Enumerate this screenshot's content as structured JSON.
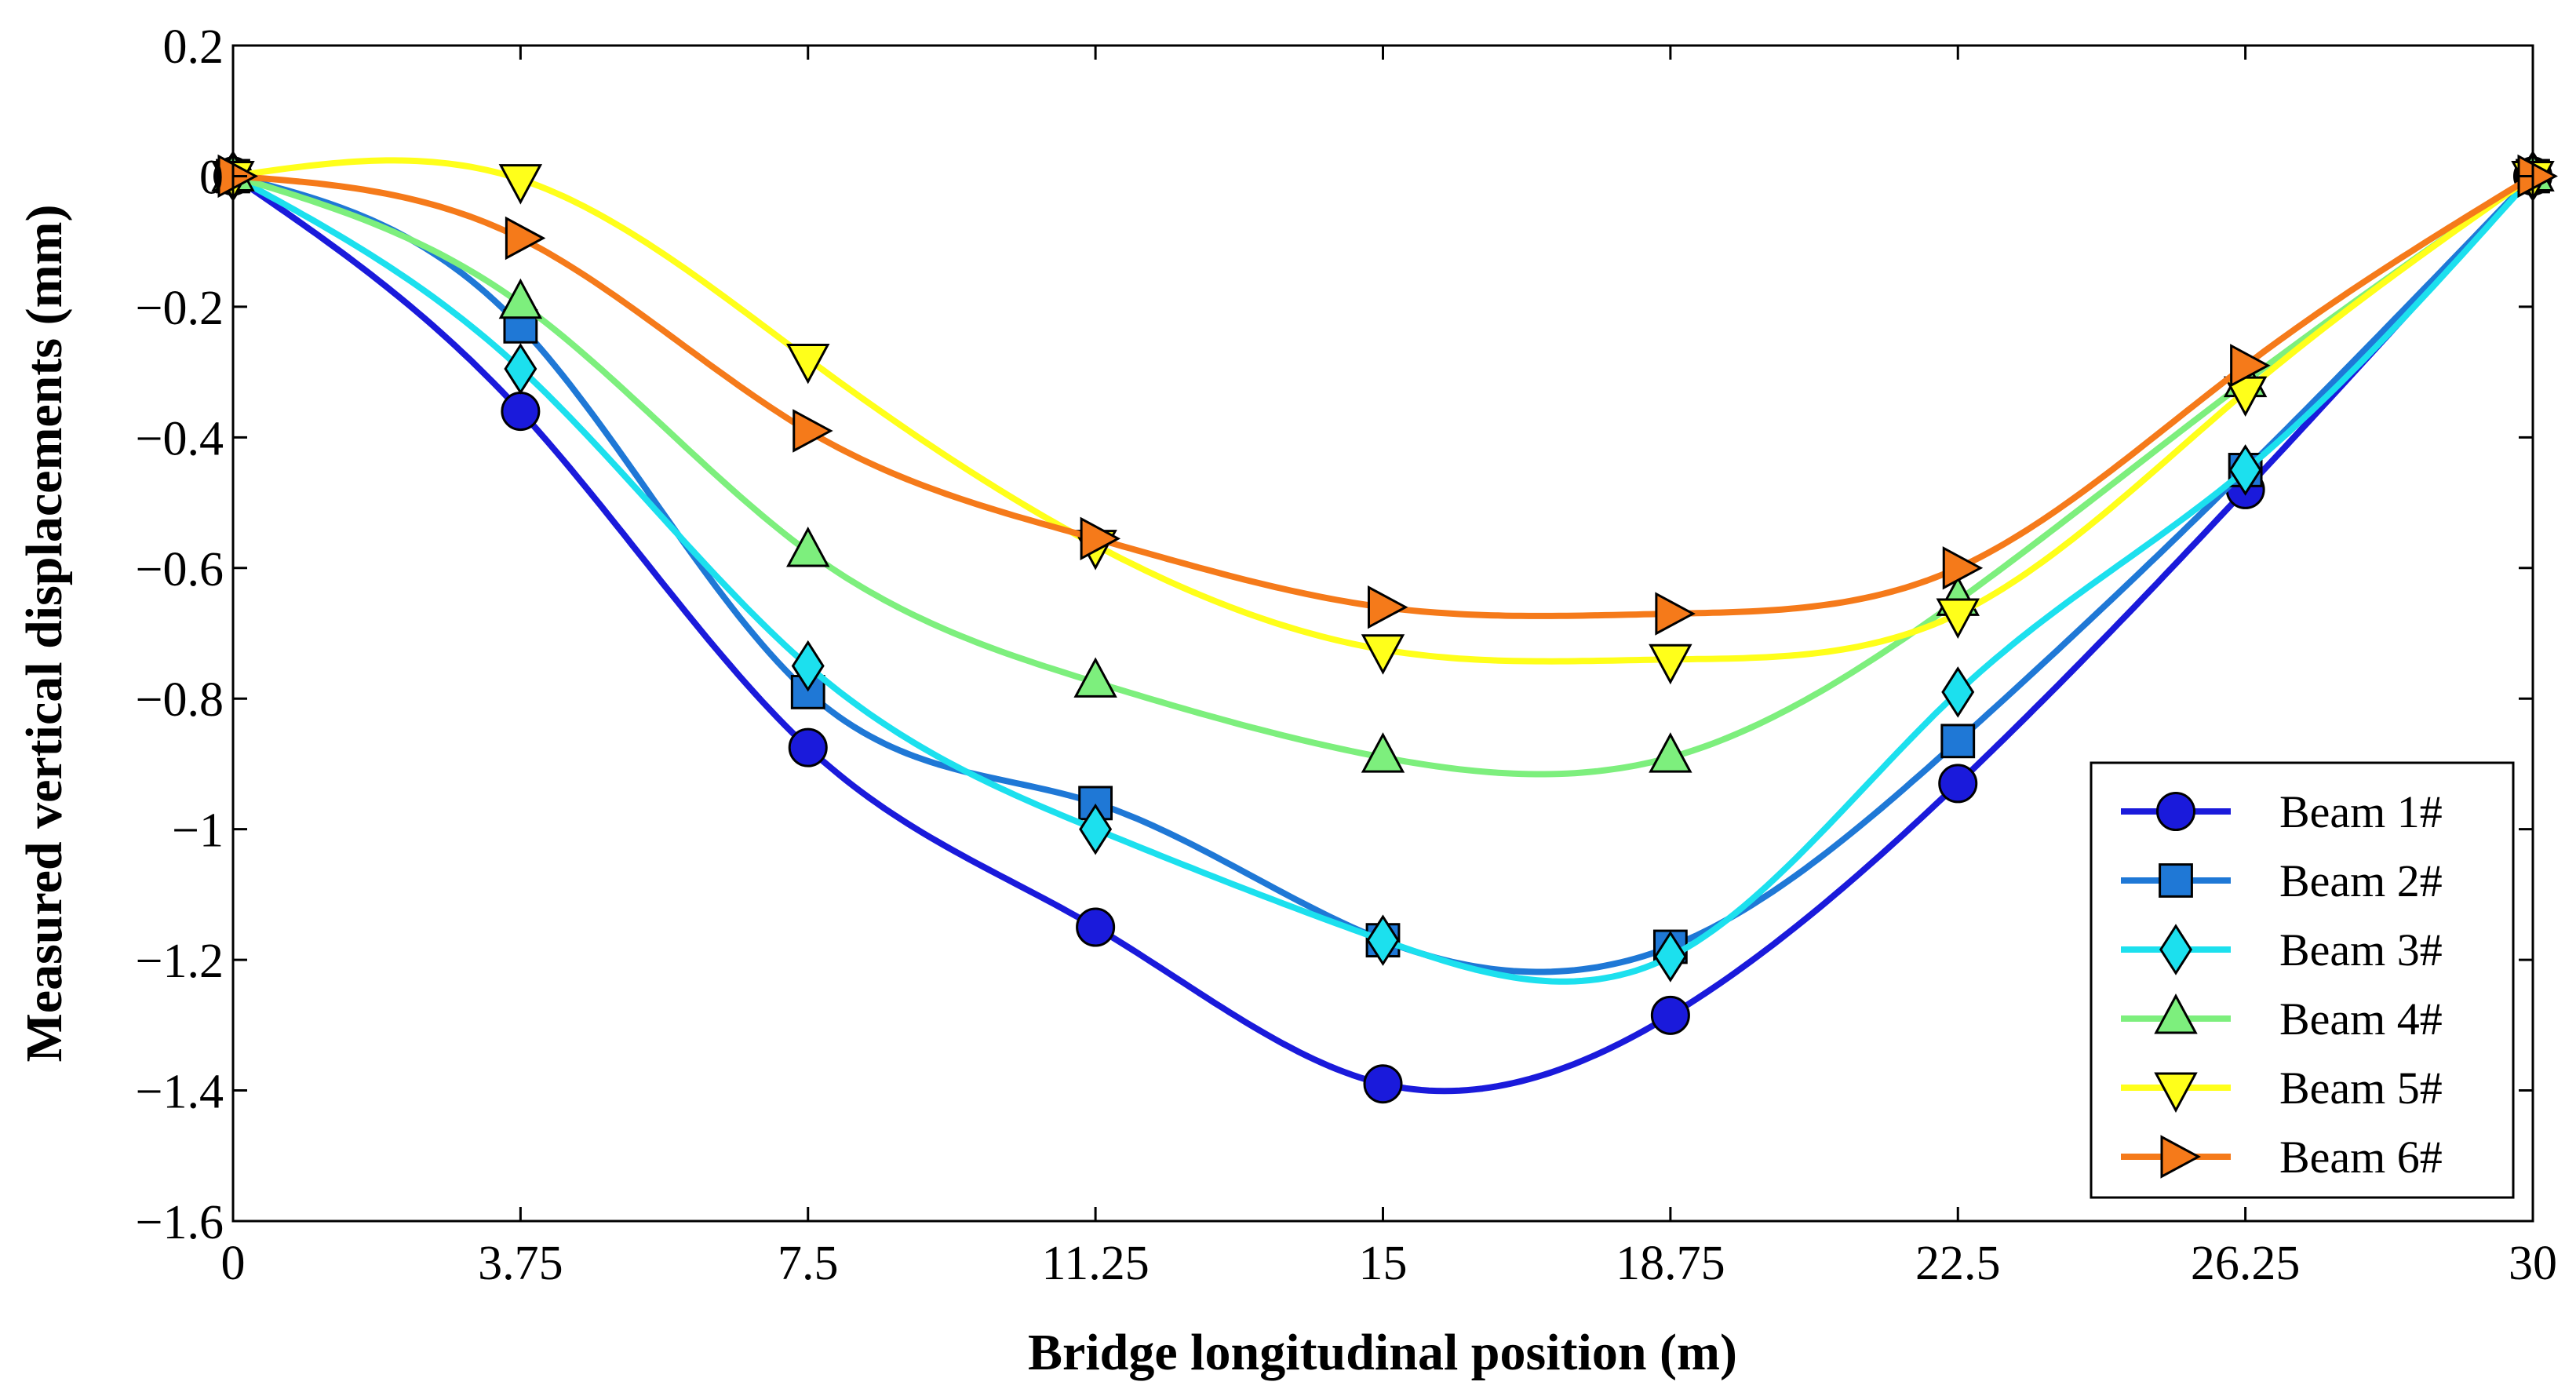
{
  "chart_data": {
    "type": "line",
    "title": "",
    "xlabel": "Bridge longitudinal position (m)",
    "ylabel": "Measured vertical displacements (mm)",
    "xlim": [
      0,
      30
    ],
    "ylim": [
      -1.6,
      0.2
    ],
    "x_ticks": [
      "0",
      "3.75",
      "7.5",
      "11.25",
      "15",
      "18.75",
      "22.5",
      "26.25",
      "30"
    ],
    "y_ticks": [
      "0.2",
      "0",
      "−0.2",
      "−0.4",
      "−0.6",
      "−0.8",
      "−1",
      "−1.2",
      "−1.4",
      "−1.6"
    ],
    "x": [
      0,
      3.75,
      7.5,
      11.25,
      15,
      18.75,
      22.5,
      26.25,
      30
    ],
    "legend_position": "bottom-right",
    "grid": false,
    "series": [
      {
        "name": "Beam 1#",
        "marker": "circle",
        "color": "#1a1adb",
        "values": [
          0,
          -0.36,
          -0.875,
          -1.15,
          -1.39,
          -1.285,
          -0.93,
          -0.48,
          0
        ]
      },
      {
        "name": "Beam 2#",
        "marker": "square",
        "color": "#1f78d6",
        "values": [
          0,
          -0.23,
          -0.79,
          -0.96,
          -1.17,
          -1.18,
          -0.865,
          -0.45,
          0
        ]
      },
      {
        "name": "Beam 3#",
        "marker": "diamond",
        "color": "#1ce0ee",
        "values": [
          0,
          -0.295,
          -0.75,
          -1.0,
          -1.17,
          -1.195,
          -0.79,
          -0.45,
          0
        ]
      },
      {
        "name": "Beam 4#",
        "marker": "triangle-up",
        "color": "#7def7d",
        "values": [
          0,
          -0.195,
          -0.575,
          -0.775,
          -0.89,
          -0.89,
          -0.65,
          -0.315,
          0
        ]
      },
      {
        "name": "Beam 5#",
        "marker": "triangle-down",
        "color": "#ffff1a",
        "values": [
          0,
          -0.005,
          -0.28,
          -0.565,
          -0.725,
          -0.74,
          -0.67,
          -0.33,
          0
        ]
      },
      {
        "name": "Beam 6#",
        "marker": "triangle-right",
        "color": "#f57a1a",
        "values": [
          0,
          -0.095,
          -0.39,
          -0.555,
          -0.66,
          -0.67,
          -0.6,
          -0.29,
          0
        ]
      }
    ]
  }
}
